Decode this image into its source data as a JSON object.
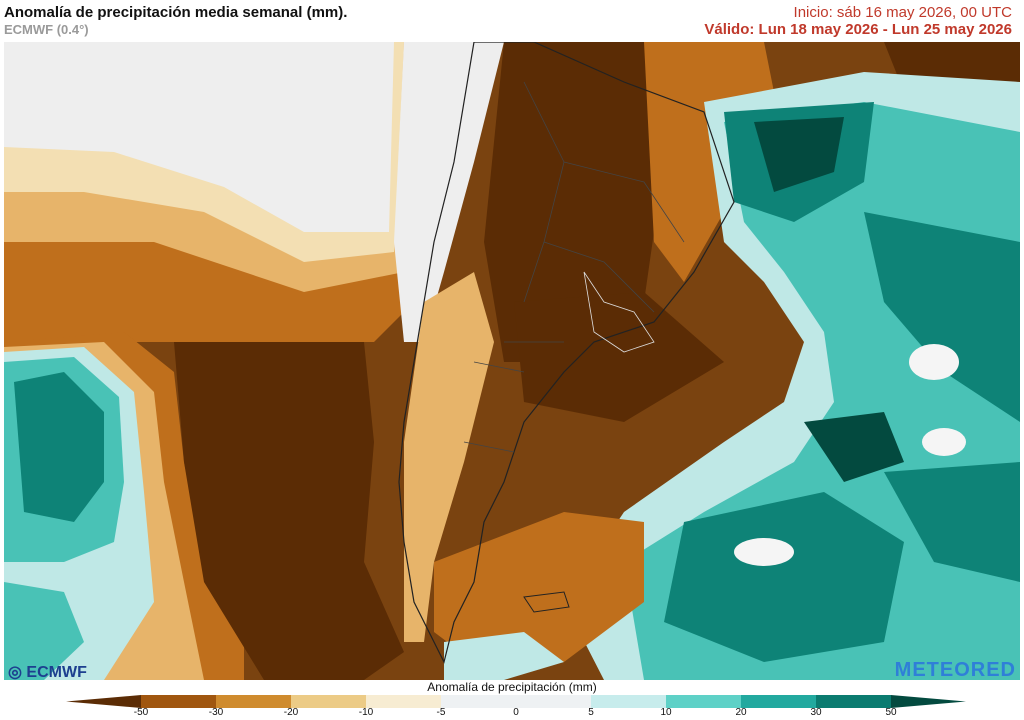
{
  "header": {
    "title": "Anomalía de precipitación media semanal (mm).",
    "model": "ECMWF (0.4°)",
    "init": "Inicio:  sáb 16 may 2026, 00 UTC",
    "valid": "Válido: Lun 18 may 2026 - Lun 25 may 2026"
  },
  "logos": {
    "left": "ECMWF",
    "right": "METEORED"
  },
  "legend": {
    "title": "Anomalía de precipitación (mm)",
    "ticks": [
      "-50",
      "-30",
      "-20",
      "-10",
      "-5",
      "0",
      "5",
      "10",
      "20",
      "30",
      "50"
    ],
    "colors": [
      "#5b2c05",
      "#a0560f",
      "#cf8b2e",
      "#eccb86",
      "#f7ecd2",
      "#eef1f3",
      "#c7ecec",
      "#5ed1c7",
      "#22a99f",
      "#0b7b70",
      "#034a3f"
    ]
  },
  "map": {
    "colors": {
      "land_low": "#eeeeee",
      "lightbrown": "#f3dfb3",
      "tan": "#e7b46a",
      "brown": "#bf6f1c",
      "darkbrown": "#7a4310",
      "deep": "#5b2c05",
      "white": "#f5f5f5",
      "lightteal": "#bfe8e6",
      "teal": "#49c2b6",
      "darkteal": "#0e8377",
      "deepteal": "#034a3f"
    }
  }
}
